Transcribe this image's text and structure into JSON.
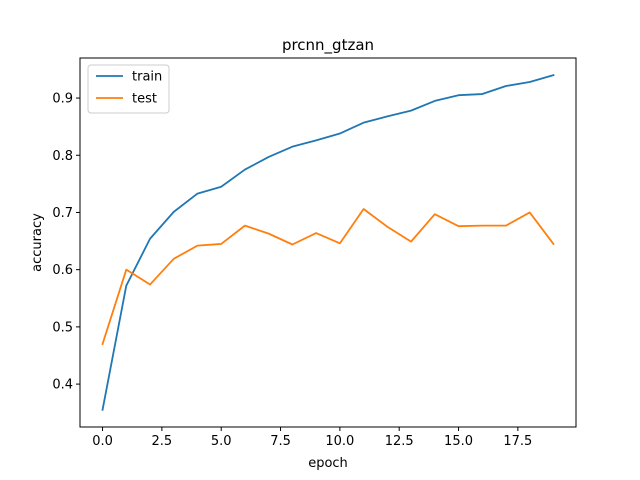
{
  "chart_data": {
    "type": "line",
    "title": "prcnn_gtzan",
    "xlabel": "epoch",
    "ylabel": "accuracy",
    "x": [
      0,
      1,
      2,
      3,
      4,
      5,
      6,
      7,
      8,
      9,
      10,
      11,
      12,
      13,
      14,
      15,
      16,
      17,
      18,
      19
    ],
    "xlim": [
      -0.95,
      19.95
    ],
    "ylim": [
      0.325,
      0.97
    ],
    "xticks": [
      0.0,
      2.5,
      5.0,
      7.5,
      10.0,
      12.5,
      15.0,
      17.5
    ],
    "xtick_labels": [
      "0.0",
      "2.5",
      "5.0",
      "7.5",
      "10.0",
      "12.5",
      "15.0",
      "17.5"
    ],
    "yticks": [
      0.4,
      0.5,
      0.6,
      0.7,
      0.8,
      0.9
    ],
    "ytick_labels": [
      "0.4",
      "0.5",
      "0.6",
      "0.7",
      "0.8",
      "0.9"
    ],
    "grid": false,
    "legend_position": "upper left",
    "series": [
      {
        "name": "train",
        "color": "#1f77b4",
        "values": [
          0.355,
          0.572,
          0.654,
          0.701,
          0.733,
          0.745,
          0.775,
          0.797,
          0.815,
          0.826,
          0.838,
          0.857,
          0.868,
          0.878,
          0.895,
          0.905,
          0.907,
          0.921,
          0.928,
          0.94
        ]
      },
      {
        "name": "test",
        "color": "#ff7f0e",
        "values": [
          0.47,
          0.6,
          0.574,
          0.619,
          0.642,
          0.645,
          0.677,
          0.663,
          0.644,
          0.664,
          0.646,
          0.706,
          0.675,
          0.649,
          0.697,
          0.676,
          0.677,
          0.677,
          0.7,
          0.645
        ]
      }
    ]
  }
}
